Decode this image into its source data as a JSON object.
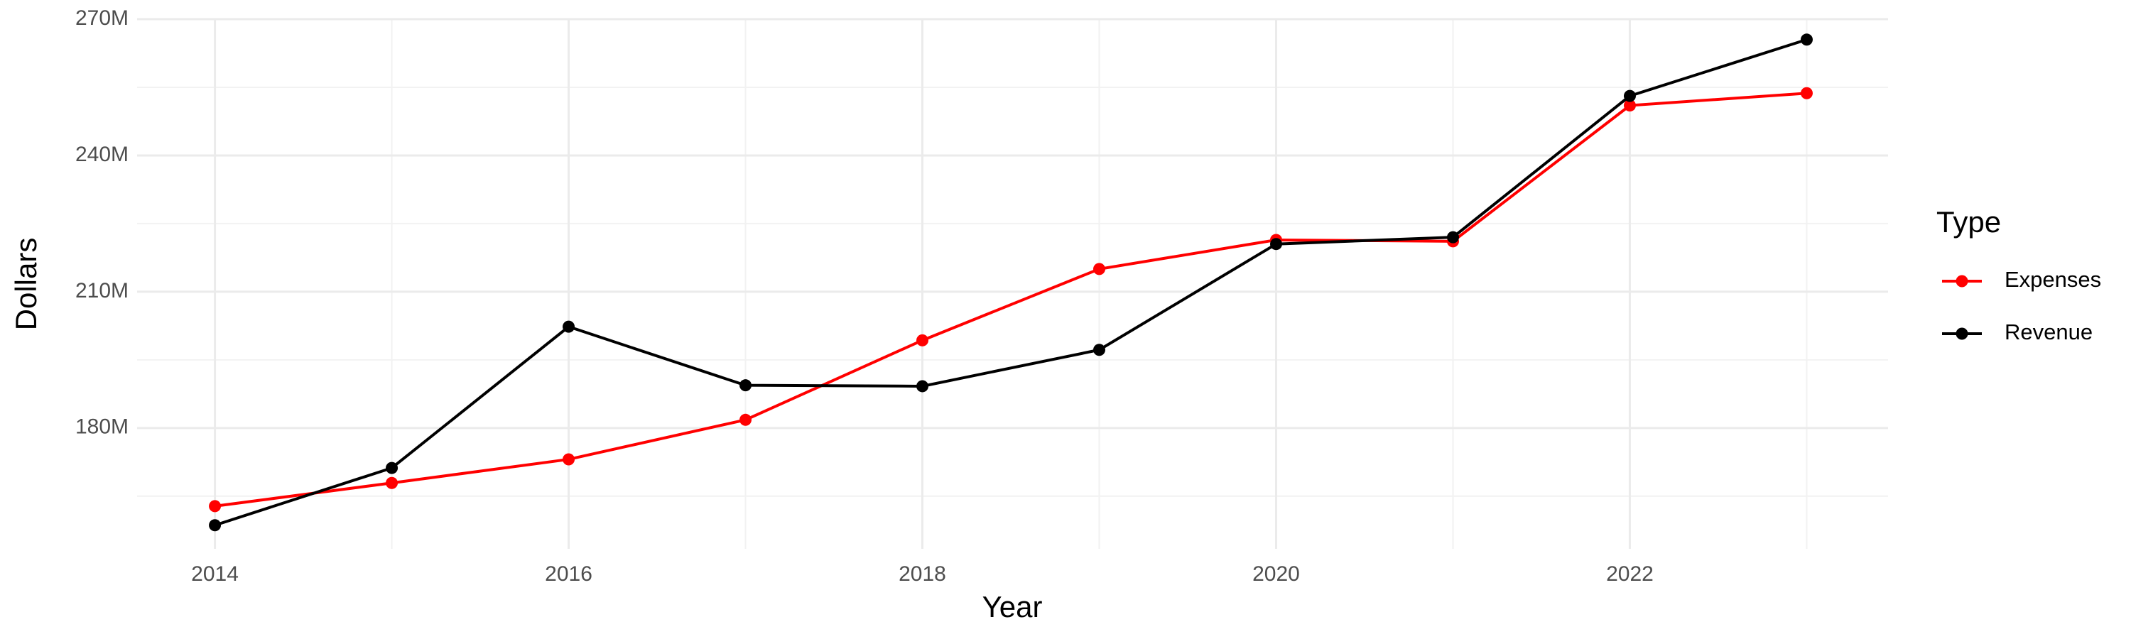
{
  "chart_data": {
    "type": "line",
    "x_label": "Year",
    "y_label": "Dollars",
    "legend_title": "Type",
    "legend_position": "right",
    "grid": true,
    "x": [
      2014,
      2015,
      2016,
      2017,
      2018,
      2019,
      2020,
      2021,
      2022,
      2023
    ],
    "series": [
      {
        "name": "Expenses",
        "color": "#ff0000",
        "values": [
          162800000,
          167900000,
          173100000,
          181800000,
          199300000,
          215000000,
          221400000,
          221100000,
          251000000,
          253700000
        ]
      },
      {
        "name": "Revenue",
        "color": "#000000",
        "values": [
          158600000,
          171200000,
          202300000,
          189400000,
          189200000,
          197200000,
          220500000,
          222000000,
          253100000,
          265500000
        ]
      }
    ],
    "xlim": [
      2013.56,
      2023.46
    ],
    "xticks": [
      2014,
      2016,
      2018,
      2020,
      2022
    ],
    "ylim": [
      153400000,
      270000000
    ],
    "yticks": [
      {
        "value": 180000000,
        "label": "180M"
      },
      {
        "value": 210000000,
        "label": "210M"
      },
      {
        "value": 240000000,
        "label": "240M"
      },
      {
        "value": 270000000,
        "label": "270M"
      }
    ]
  }
}
